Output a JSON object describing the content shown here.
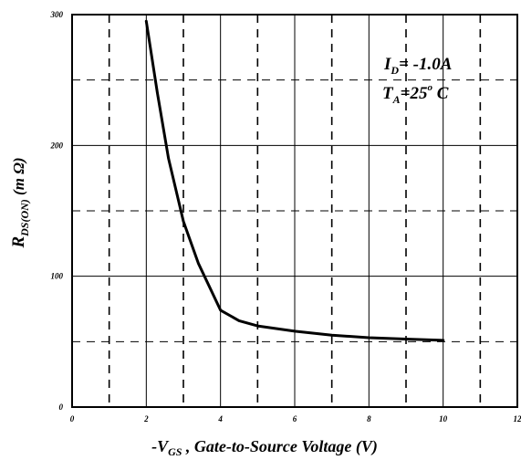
{
  "chart_data": {
    "type": "line",
    "x": [
      2,
      2.3,
      2.6,
      3.0,
      3.4,
      4.0,
      4.5,
      5.0,
      6.0,
      7.0,
      8.0,
      9.0,
      10.0
    ],
    "series": [
      {
        "values": [
          295,
          240,
          190,
          142,
          110,
          74,
          66,
          62,
          58,
          55,
          53,
          52,
          51
        ]
      }
    ],
    "xlim": [
      0,
      12
    ],
    "ylim": [
      0,
      300
    ],
    "xticks": [
      "0",
      "2",
      "4",
      "6",
      "8",
      "10",
      "12"
    ],
    "yticks": [
      "0",
      "100",
      "200",
      "300"
    ],
    "xlabel_prefix": "-V",
    "xlabel_sub": "GS",
    "xlabel_rest": " , Gate-to-Source Voltage (V)",
    "ylabel_main": "R",
    "ylabel_sub": "DS(ON)",
    "ylabel_unit": " (m Ω)",
    "annotation": {
      "line1_main": "I",
      "line1_sub": "D",
      "line1_rest": "= -1.0A",
      "line2_main": "T",
      "line2_sub": "A",
      "line2_rest": "=25",
      "line2_sup": "o",
      "line2_unit": " C"
    },
    "grid": true,
    "line_color": "#000000"
  }
}
